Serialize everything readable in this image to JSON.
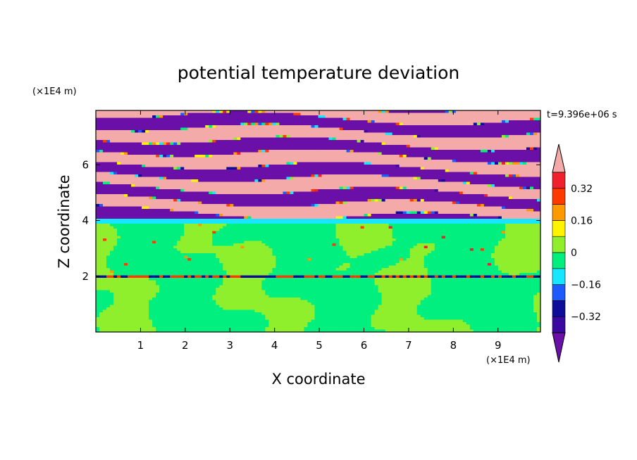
{
  "chart_data": {
    "type": "heatmap",
    "title": "potential temperature deviation",
    "xlabel": "X coordinate",
    "ylabel": "Z coordinate",
    "x_unit": "(×1E4 m)",
    "y_unit": "(×1E4 m)",
    "time_label": "t=9.396e+06 s",
    "xlim": [
      0,
      9.95
    ],
    "ylim": [
      0,
      7.95
    ],
    "x_ticks": [
      1,
      2,
      3,
      4,
      5,
      6,
      7,
      8,
      9
    ],
    "y_ticks": [
      2,
      4,
      6
    ],
    "colorbar": {
      "levels": [
        {
          "from": -0.4,
          "to": -0.32,
          "color": "#3a0aa0"
        },
        {
          "from": -0.32,
          "to": -0.24,
          "color": "#0d0d99"
        },
        {
          "from": -0.24,
          "to": -0.16,
          "color": "#1e5bff"
        },
        {
          "from": -0.16,
          "to": -0.08,
          "color": "#16e7ff"
        },
        {
          "from": -0.08,
          "to": 0.0,
          "color": "#00ef7e"
        },
        {
          "from": 0.0,
          "to": 0.08,
          "color": "#8fef2c"
        },
        {
          "from": 0.08,
          "to": 0.16,
          "color": "#fff300"
        },
        {
          "from": 0.16,
          "to": 0.24,
          "color": "#ff9900"
        },
        {
          "from": 0.24,
          "to": 0.32,
          "color": "#ff3a00"
        },
        {
          "from": 0.32,
          "to": 0.4,
          "color": "#f0202c"
        }
      ],
      "under_color": "#6a0fa8",
      "over_color": "#f5aaaa",
      "tick_values": [
        0.32,
        0.16,
        0,
        -0.16,
        -0.32
      ],
      "tick_labels": [
        "0.32",
        "0.16",
        "0",
        "−0.16",
        "−0.32"
      ]
    },
    "regions": [
      {
        "zfrom": 0.0,
        "zto": 2.0,
        "dominant": -0.04,
        "patches": 0.04,
        "description": "spring green with lighter green plumes"
      },
      {
        "zfrom": 2.0,
        "zto": 4.0,
        "dominant": -0.04,
        "patches": 0.04,
        "description": "mixed greens, scattered warm eddies"
      },
      {
        "zfrom": 4.0,
        "zto": 7.95,
        "dominant": "alternating",
        "low": -0.5,
        "high": 0.5,
        "description": "alternating purple/pink layers"
      }
    ],
    "grid": false
  }
}
